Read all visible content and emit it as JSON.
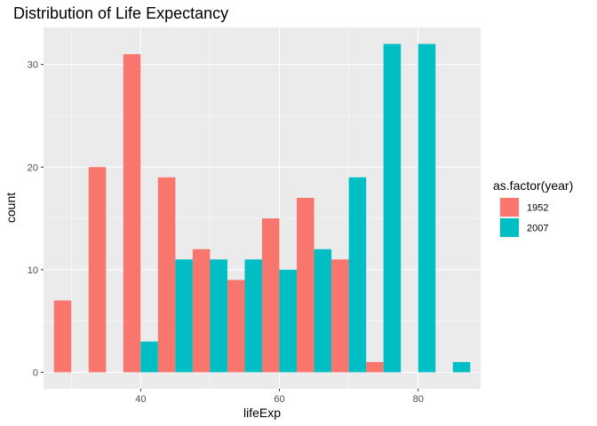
{
  "chart_data": {
    "type": "bar",
    "title": "Distribution of Life Expectancy",
    "xlabel": "lifeExp",
    "ylabel": "count",
    "x": [
      30,
      35,
      40,
      45,
      50,
      55,
      60,
      65,
      70,
      75,
      80,
      85
    ],
    "bin_width": 5,
    "xlim": [
      26,
      89
    ],
    "ylim": [
      -1.6,
      33.6
    ],
    "x_ticks": [
      40,
      60,
      80
    ],
    "y_ticks": [
      0,
      10,
      20,
      30
    ],
    "x_tick_labels": [
      "40",
      "60",
      "80"
    ],
    "y_tick_labels": [
      "0",
      "10",
      "20",
      "30"
    ],
    "grid": true,
    "legend": {
      "title": "as.factor(year)",
      "position": "right"
    },
    "series": [
      {
        "name": "1952",
        "color": "#F8766D",
        "values": [
          7,
          20,
          31,
          19,
          12,
          9,
          15,
          17,
          11,
          1,
          0,
          0
        ]
      },
      {
        "name": "2007",
        "color": "#00BFC4",
        "values": [
          0,
          0,
          3,
          11,
          11,
          11,
          10,
          12,
          19,
          32,
          32,
          1
        ]
      }
    ],
    "panel_background": "#EBEBEB",
    "grid_color": "#FFFFFF"
  }
}
